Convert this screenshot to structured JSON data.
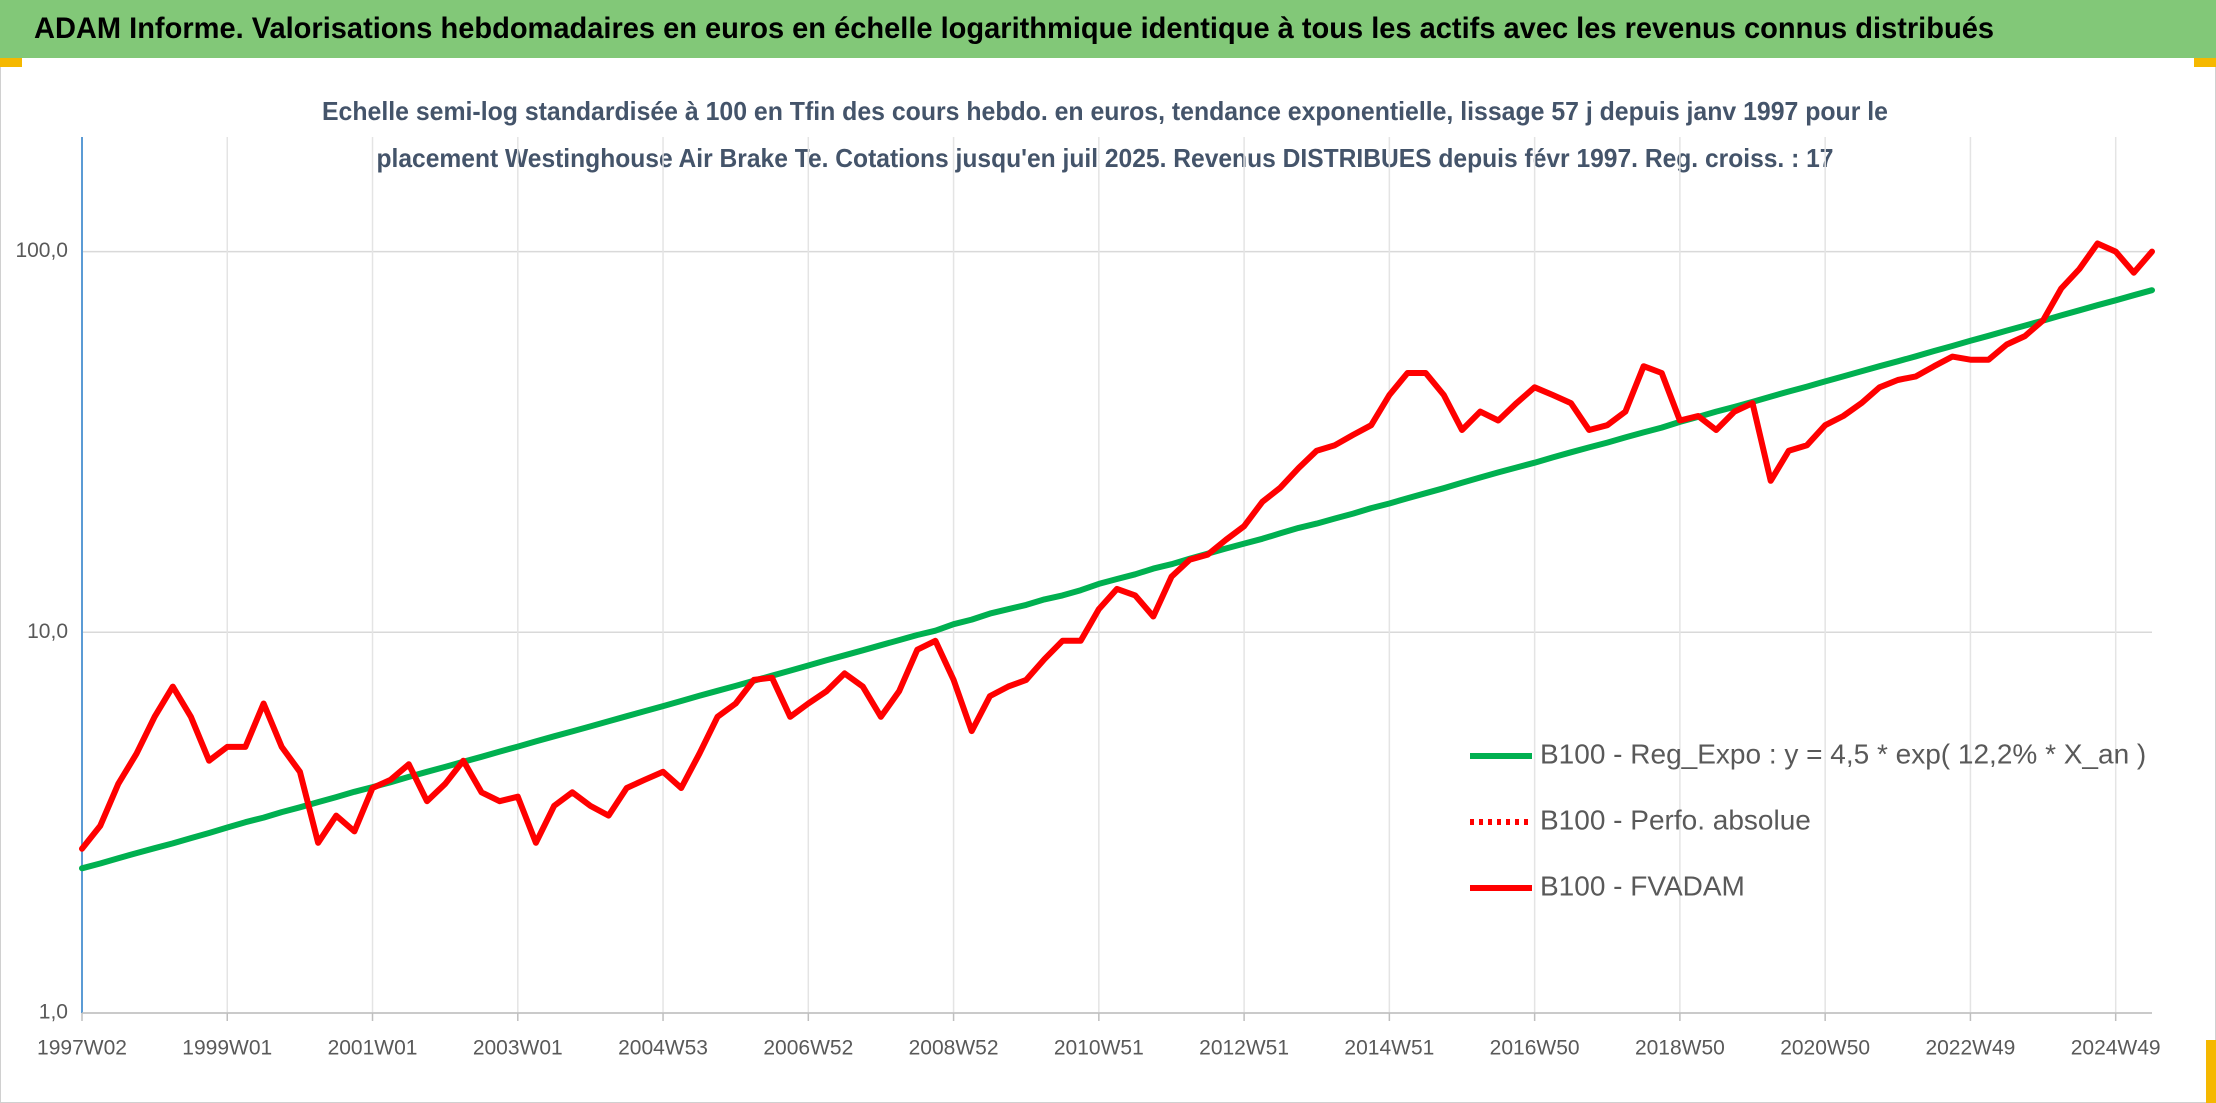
{
  "chart_data": {
    "type": "line",
    "title": "ADAM Informe. Valorisations hebdomadaires en euros en échelle logarithmique identique à tous les actifs avec les revenus connus distribués",
    "subtitle": [
      "Echelle semi-log standardisée à 100 en Tfin des cours hebdo. en euros, tendance exponentielle, lissage 57 j depuis janv 1997 pour le",
      "placement Westinghouse Air Brake Te. Cotations jusqu'en juil 2025. Revenus DISTRIBUES depuis févr 1997. Reg. croiss. : 17"
    ],
    "categories": [
      "1997W02",
      null,
      null,
      null,
      null,
      null,
      null,
      null,
      "1999W01",
      null,
      null,
      null,
      null,
      null,
      null,
      null,
      "2001W01",
      null,
      null,
      null,
      null,
      null,
      null,
      null,
      "2003W01",
      null,
      null,
      null,
      null,
      null,
      null,
      null,
      "2004W53",
      null,
      null,
      null,
      null,
      null,
      null,
      null,
      "2006W52",
      null,
      null,
      null,
      null,
      null,
      null,
      null,
      "2008W52",
      null,
      null,
      null,
      null,
      null,
      null,
      null,
      "2010W51",
      null,
      null,
      null,
      null,
      null,
      null,
      null,
      "2012W51",
      null,
      null,
      null,
      null,
      null,
      null,
      null,
      "2014W51",
      null,
      null,
      null,
      null,
      null,
      null,
      null,
      "2016W50",
      null,
      null,
      null,
      null,
      null,
      null,
      null,
      "2018W50",
      null,
      null,
      null,
      null,
      null,
      null,
      null,
      "2020W50",
      null,
      null,
      null,
      null,
      null,
      null,
      null,
      "2022W49",
      null,
      null,
      null,
      null,
      null,
      null,
      null,
      "2024W49",
      null,
      null
    ],
    "series": [
      {
        "name": "B100 - Reg_Expo : y = 4,5 * exp( 12,2% *  X_an )",
        "color": "#00b050",
        "style": "solid",
        "values": [
          2.4,
          2.47,
          2.55,
          2.63,
          2.71,
          2.79,
          2.88,
          2.97,
          3.07,
          3.17,
          3.26,
          3.37,
          3.47,
          3.58,
          3.69,
          3.81,
          3.92,
          4.04,
          4.17,
          4.3,
          4.43,
          4.57,
          4.71,
          4.86,
          5.01,
          5.17,
          5.33,
          5.49,
          5.66,
          5.84,
          6.02,
          6.21,
          6.4,
          6.6,
          6.81,
          7.02,
          7.23,
          7.46,
          7.69,
          7.93,
          8.18,
          8.44,
          8.7,
          8.97,
          9.25,
          9.54,
          9.84,
          10.1,
          10.5,
          10.8,
          11.2,
          11.5,
          11.8,
          12.2,
          12.5,
          12.9,
          13.4,
          13.8,
          14.2,
          14.7,
          15.1,
          15.6,
          16.1,
          16.6,
          17.1,
          17.6,
          18.2,
          18.8,
          19.3,
          19.9,
          20.5,
          21.2,
          21.8,
          22.5,
          23.2,
          23.9,
          24.7,
          25.5,
          26.3,
          27.1,
          27.9,
          28.8,
          29.7,
          30.6,
          31.5,
          32.5,
          33.5,
          34.5,
          35.7,
          36.8,
          38.0,
          39.1,
          40.3,
          41.6,
          42.9,
          44.2,
          45.6,
          47.0,
          48.5,
          50.0,
          51.5,
          53.1,
          54.8,
          56.5,
          58.3,
          60.1,
          62.0,
          63.9,
          65.9,
          68.0,
          70.1,
          72.3,
          74.5,
          76.8,
          79.2
        ]
      },
      {
        "name": "B100 - Perfo. absolue",
        "color": "#ff0000",
        "style": "dotted",
        "values": [
          2.7,
          3.1,
          4.0,
          4.8,
          6.0,
          7.2,
          6.0,
          4.6,
          5.0,
          5.0,
          6.5,
          5.0,
          4.3,
          2.8,
          3.3,
          3.0,
          3.9,
          4.1,
          4.5,
          3.6,
          4.0,
          4.6,
          3.8,
          3.6,
          3.7,
          2.8,
          3.5,
          3.8,
          3.5,
          3.3,
          3.9,
          4.1,
          4.3,
          3.9,
          4.8,
          6.0,
          6.5,
          7.5,
          7.6,
          6.0,
          6.5,
          7.0,
          7.8,
          7.2,
          6.0,
          7.0,
          9.0,
          9.5,
          7.5,
          5.5,
          6.8,
          7.2,
          7.5,
          8.5,
          9.5,
          9.5,
          11.5,
          13,
          12.5,
          11,
          14,
          15.5,
          16,
          17.5,
          19,
          22,
          24,
          27,
          30,
          31,
          33,
          35,
          42,
          48,
          48,
          42,
          34,
          38,
          36,
          40,
          44,
          42,
          40,
          34,
          35,
          38,
          50,
          48,
          36,
          37,
          34,
          38,
          40,
          25,
          30,
          31,
          35,
          37,
          40,
          44,
          46,
          47,
          50,
          53,
          52,
          52,
          57,
          60,
          66,
          80,
          90,
          105,
          100,
          88,
          100
        ]
      },
      {
        "name": "B100 - FVADAM",
        "color": "#ff0000",
        "style": "solid",
        "values": [
          2.7,
          3.1,
          4.0,
          4.8,
          6.0,
          7.2,
          6.0,
          4.6,
          5.0,
          5.0,
          6.5,
          5.0,
          4.3,
          2.8,
          3.3,
          3.0,
          3.9,
          4.1,
          4.5,
          3.6,
          4.0,
          4.6,
          3.8,
          3.6,
          3.7,
          2.8,
          3.5,
          3.8,
          3.5,
          3.3,
          3.9,
          4.1,
          4.3,
          3.9,
          4.8,
          6.0,
          6.5,
          7.5,
          7.6,
          6.0,
          6.5,
          7.0,
          7.8,
          7.2,
          6.0,
          7.0,
          9.0,
          9.5,
          7.5,
          5.5,
          6.8,
          7.2,
          7.5,
          8.5,
          9.5,
          9.5,
          11.5,
          13,
          12.5,
          11,
          14,
          15.5,
          16,
          17.5,
          19,
          22,
          24,
          27,
          30,
          31,
          33,
          35,
          42,
          48,
          48,
          42,
          34,
          38,
          36,
          40,
          44,
          42,
          40,
          34,
          35,
          38,
          50,
          48,
          36,
          37,
          34,
          38,
          40,
          25,
          30,
          31,
          35,
          37,
          40,
          44,
          46,
          47,
          50,
          53,
          52,
          52,
          57,
          60,
          66,
          80,
          90,
          105,
          100,
          88,
          100
        ]
      }
    ],
    "ylim": [
      1,
      200
    ],
    "log_y": true,
    "yticks": [
      {
        "value": 1,
        "label": "1,0"
      },
      {
        "value": 10,
        "label": "10,0"
      },
      {
        "value": 100,
        "label": "100,0"
      }
    ],
    "grid": true,
    "legend": "lower right"
  }
}
